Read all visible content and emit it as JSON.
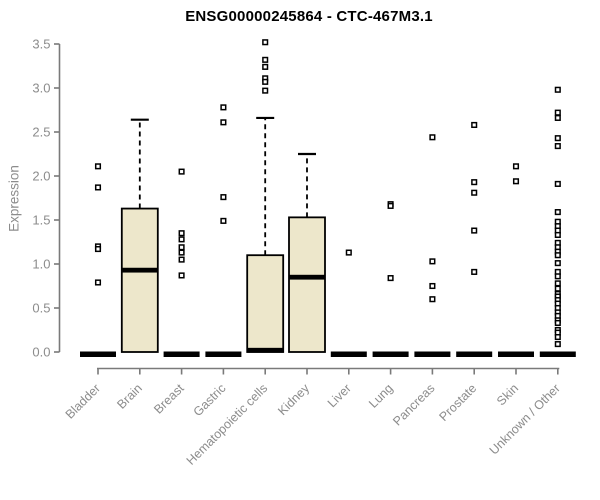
{
  "page": {
    "background": "#ffffff"
  },
  "chart_data": {
    "type": "boxplot",
    "title": "ENSG00000245864 - CTC-467M3.1",
    "ylabel": "Expression",
    "xlabel": "",
    "ylim": [
      0,
      3.5
    ],
    "ytick_labels": [
      "0.0",
      "0.5",
      "1.0",
      "1.5",
      "2.0",
      "2.5",
      "3.0",
      "3.5"
    ],
    "ytick_values": [
      0,
      0.5,
      1,
      1.5,
      2,
      2.5,
      3,
      3.5
    ],
    "grid": false,
    "legend_position": "none",
    "categories": [
      "Bladder",
      "Brain",
      "Breast",
      "Gastric",
      "Hematopoietic cells",
      "Kidney",
      "Liver",
      "Lung",
      "Pancreas",
      "Prostate",
      "Skin",
      "Unknown / Other"
    ],
    "boxes": [
      {
        "category": "Bladder",
        "q1": 0,
        "median": 0,
        "q3": 0,
        "whisker_low": 0,
        "whisker_high": 0,
        "outliers": [
          2.11,
          1.87,
          1.2,
          1.17,
          0.79
        ]
      },
      {
        "category": "Brain",
        "q1": 0,
        "median": 0.93,
        "q3": 1.63,
        "whisker_low": 0,
        "whisker_high": 2.64,
        "outliers": []
      },
      {
        "category": "Breast",
        "q1": 0,
        "median": 0,
        "q3": 0,
        "whisker_low": 0,
        "whisker_high": 0,
        "outliers": [
          2.05,
          1.35,
          1.28,
          1.19,
          1.13,
          1.05,
          0.87
        ]
      },
      {
        "category": "Gastric",
        "q1": 0,
        "median": 0,
        "q3": 0,
        "whisker_low": 0,
        "whisker_high": 0,
        "outliers": [
          2.78,
          2.61,
          1.76,
          1.49
        ]
      },
      {
        "category": "Hematopoietic cells",
        "q1": 0,
        "median": 0.02,
        "q3": 1.1,
        "whisker_low": 0,
        "whisker_high": 2.66,
        "outliers": [
          3.52,
          3.32,
          3.24,
          3.11,
          3.07,
          2.97
        ]
      },
      {
        "category": "Kidney",
        "q1": 0,
        "median": 0.85,
        "q3": 1.53,
        "whisker_low": 0,
        "whisker_high": 2.25,
        "outliers": []
      },
      {
        "category": "Liver",
        "q1": 0,
        "median": 0,
        "q3": 0,
        "whisker_low": 0,
        "whisker_high": 0,
        "outliers": [
          1.13
        ]
      },
      {
        "category": "Lung",
        "q1": 0,
        "median": 0,
        "q3": 0,
        "whisker_low": 0,
        "whisker_high": 0,
        "outliers": [
          1.68,
          1.66,
          0.84
        ]
      },
      {
        "category": "Pancreas",
        "q1": 0,
        "median": 0,
        "q3": 0,
        "whisker_low": 0,
        "whisker_high": 0,
        "outliers": [
          2.44,
          1.03,
          0.75,
          0.6
        ]
      },
      {
        "category": "Prostate",
        "q1": 0,
        "median": 0,
        "q3": 0,
        "whisker_low": 0,
        "whisker_high": 0,
        "outliers": [
          2.58,
          1.93,
          1.81,
          1.38,
          0.91
        ]
      },
      {
        "category": "Skin",
        "q1": 0,
        "median": 0,
        "q3": 0,
        "whisker_low": 0,
        "whisker_high": 0,
        "outliers": [
          2.11,
          1.94
        ]
      },
      {
        "category": "Unknown / Other",
        "q1": 0,
        "median": 0,
        "q3": 0,
        "whisker_low": 0,
        "whisker_high": 0,
        "outliers": [
          2.98,
          2.72,
          2.66,
          2.43,
          2.34,
          1.91,
          1.59,
          1.48,
          1.43,
          1.38,
          1.33,
          1.24,
          1.19,
          1.14,
          1.1,
          1.01,
          0.91,
          0.86,
          0.78,
          0.72,
          0.66,
          0.63,
          0.59,
          0.55,
          0.5,
          0.45,
          0.41,
          0.36,
          0.33,
          0.25,
          0.22,
          0.17,
          0.09
        ]
      }
    ],
    "colors": {
      "box_fill": "#EDE7CB",
      "box_stroke": "#000000",
      "median": "#000000",
      "whisker": "#000000",
      "outlier_fill": "#FFFFFF",
      "outlier_stroke": "#000000",
      "axis_line": "#7a7a7a",
      "axis_text": "#8c8c8c",
      "title_text": "#000000",
      "background": "#FFFFFF"
    }
  }
}
